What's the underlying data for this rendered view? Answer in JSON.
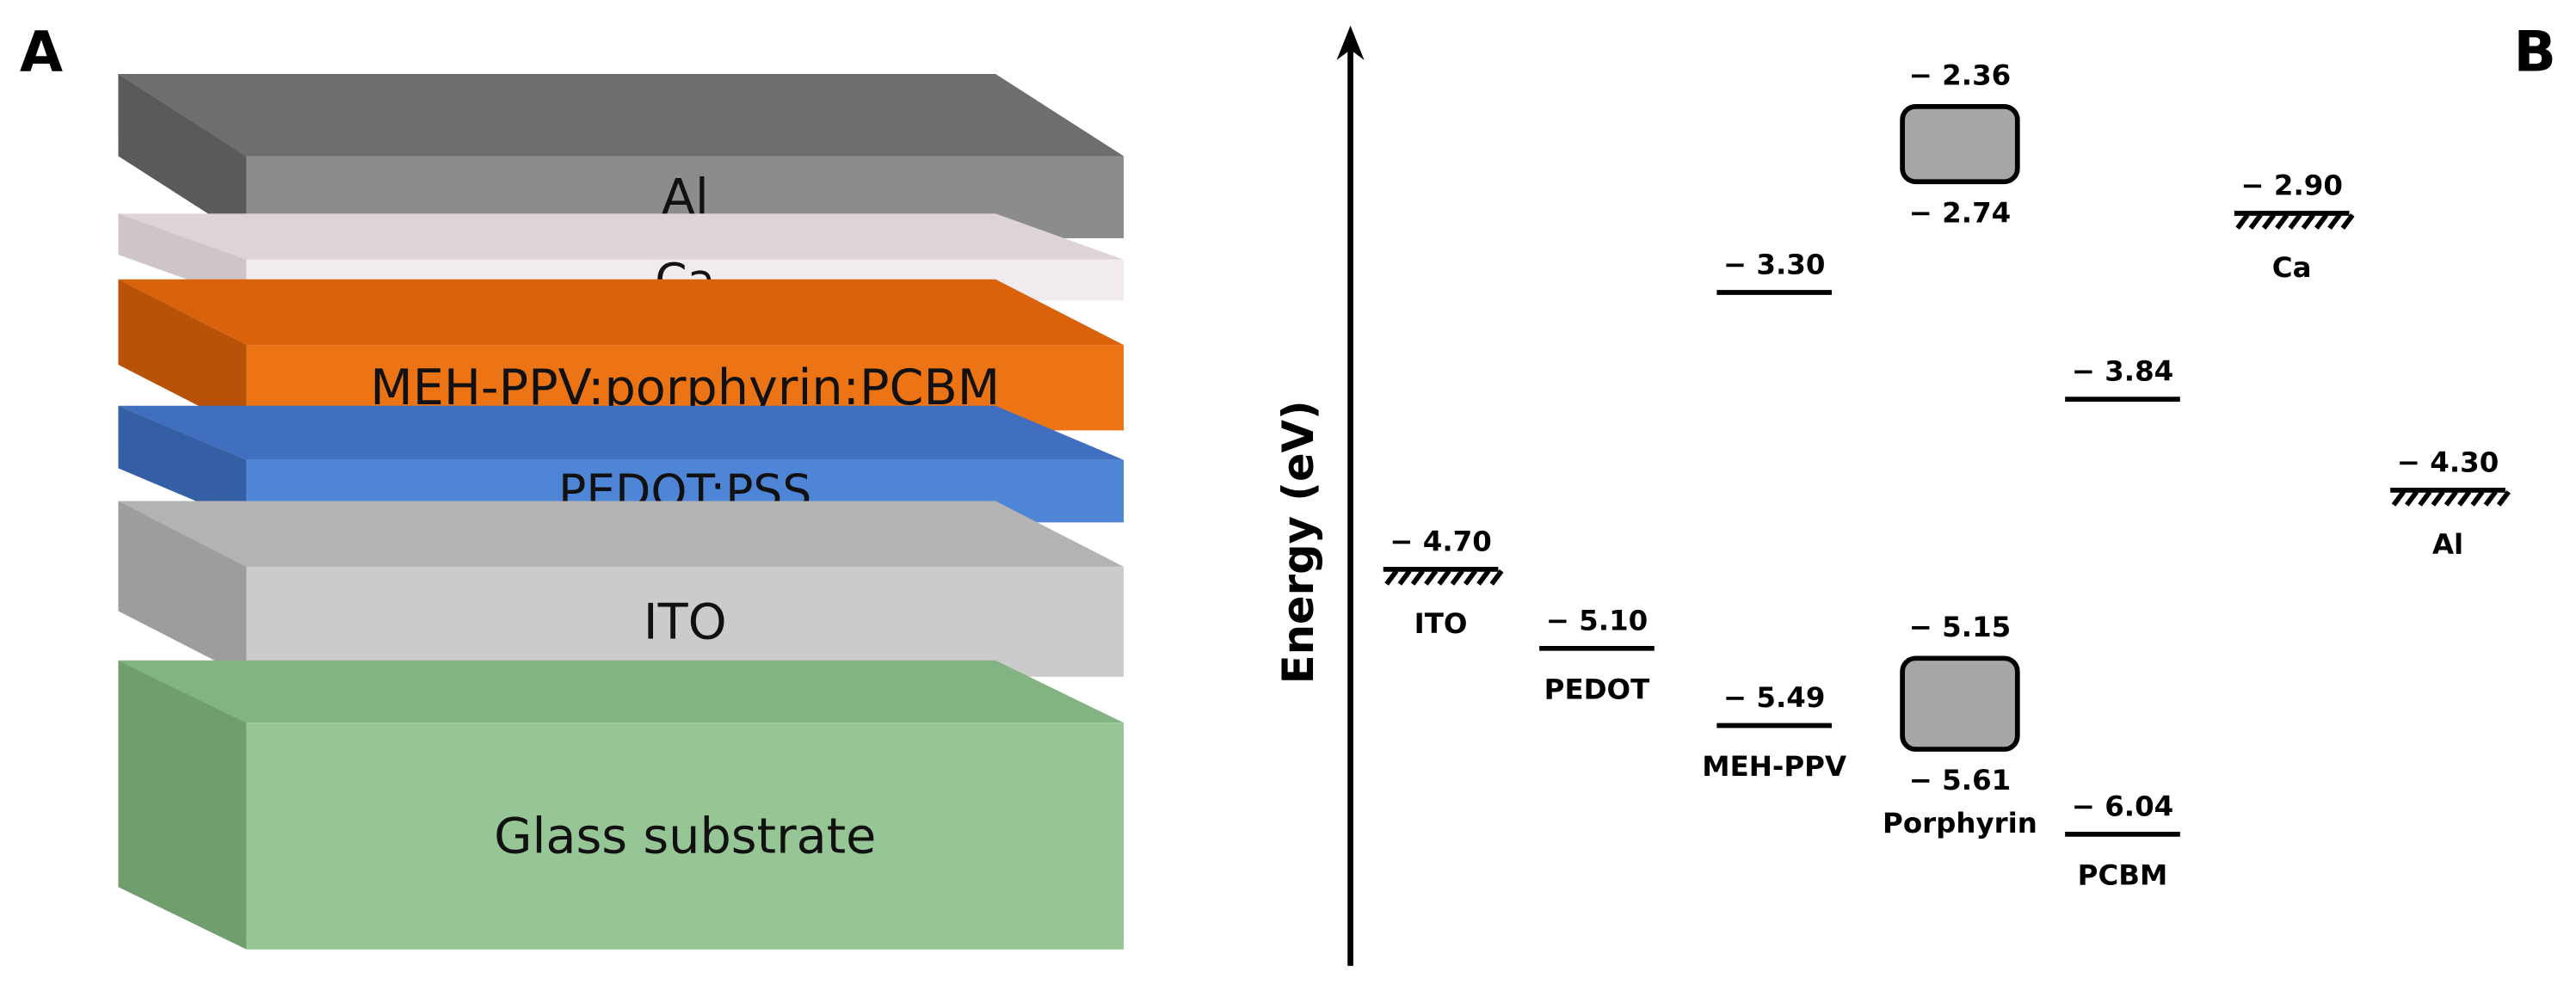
{
  "panel_labels": [
    "A",
    "B"
  ],
  "device_stack": {
    "layers": [
      "Al",
      "Ca",
      "MEH-PPV:porphyrin:PCBM",
      "PEDOT:PSS",
      "ITO",
      "Glass substrate"
    ]
  },
  "energy_diagram": {
    "axis_label": "Energy (eV)",
    "materials": [
      {
        "name": "ITO",
        "style": "hatched",
        "levels": [
          {
            "value": -4.7,
            "label": "− 4.70"
          }
        ]
      },
      {
        "name": "PEDOT",
        "style": "line",
        "levels": [
          {
            "value": -5.1,
            "label": "− 5.10"
          }
        ]
      },
      {
        "name": "MEH-PPV",
        "style": "line",
        "levels": [
          {
            "value": -3.3,
            "label": "− 3.30"
          },
          {
            "value": -5.49,
            "label": "− 5.49"
          }
        ]
      },
      {
        "name": "Porphyrin",
        "style": "box",
        "levels": [
          {
            "value": -2.36,
            "label": "− 2.36"
          },
          {
            "value": -2.74,
            "label": "− 2.74"
          },
          {
            "value": -5.15,
            "label": "− 5.15"
          },
          {
            "value": -5.61,
            "label": "− 5.61"
          }
        ]
      },
      {
        "name": "PCBM",
        "style": "line",
        "levels": [
          {
            "value": -3.84,
            "label": "− 3.84"
          },
          {
            "value": -6.04,
            "label": "− 6.04"
          }
        ]
      },
      {
        "name": "Ca",
        "style": "hatched",
        "levels": [
          {
            "value": -2.9,
            "label": "− 2.90"
          }
        ]
      },
      {
        "name": "Al",
        "style": "hatched",
        "levels": [
          {
            "value": -4.3,
            "label": "− 4.30"
          }
        ]
      }
    ]
  }
}
